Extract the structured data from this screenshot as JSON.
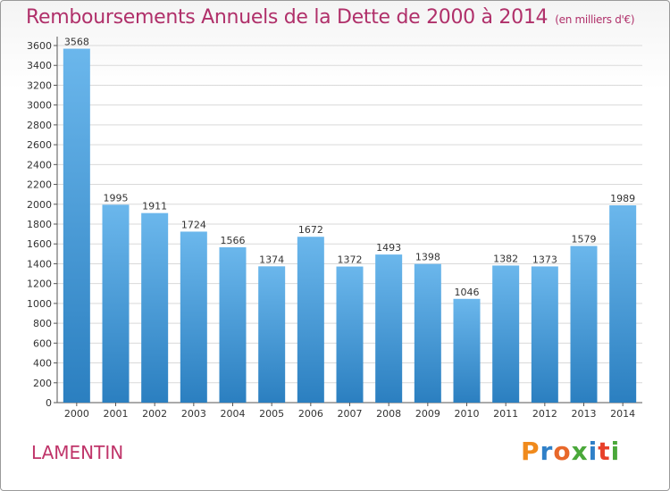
{
  "title": "Remboursements Annuels de la Dette de 2000 à 2014",
  "subtitle": "(en milliers d'€)",
  "commune": "LAMENTIN",
  "logo": {
    "text": "Proxiti",
    "letter_colors": [
      "#f08a1c",
      "#2f80c8",
      "#e8682a",
      "#4aa83a",
      "#2f80c8",
      "#e8402a",
      "#4aa83a"
    ]
  },
  "colors": {
    "title": "#b0306a",
    "bar_top": "#6bb7ec",
    "bar_bottom": "#2b7fc0",
    "grid": "#d9d9d9"
  },
  "chart_data": {
    "type": "bar",
    "categories": [
      "2000",
      "2001",
      "2002",
      "2003",
      "2004",
      "2005",
      "2006",
      "2007",
      "2008",
      "2009",
      "2010",
      "2011",
      "2012",
      "2013",
      "2014"
    ],
    "values": [
      3568,
      1995,
      1911,
      1724,
      1566,
      1374,
      1672,
      1372,
      1493,
      1398,
      1046,
      1382,
      1373,
      1579,
      1989
    ],
    "yticks": [
      0,
      200,
      400,
      600,
      800,
      1000,
      1200,
      1400,
      1600,
      1800,
      2000,
      2200,
      2400,
      2600,
      2800,
      3000,
      3200,
      3400,
      3600
    ],
    "ylim": [
      0,
      3600
    ],
    "grid": true
  }
}
